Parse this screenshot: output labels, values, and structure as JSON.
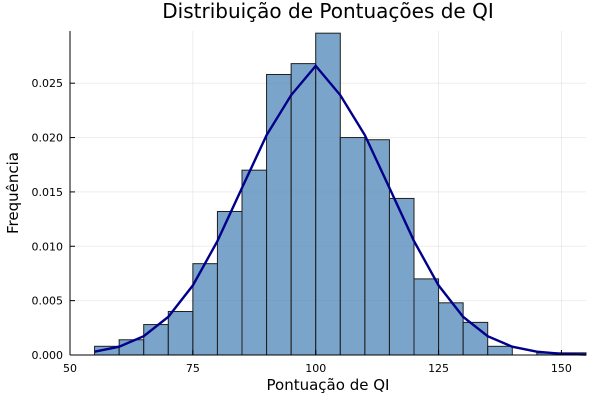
{
  "chart_data": {
    "type": "bar",
    "title": "Distribuição de Pontuações de QI",
    "xlabel": "Pontuação de QI",
    "ylabel": "Frequência",
    "x_ticks": [
      "50",
      "75",
      "100",
      "125",
      "150"
    ],
    "y_ticks": [
      "0.000",
      "0.005",
      "0.010",
      "0.015",
      "0.020",
      "0.025"
    ],
    "xlim": [
      50,
      155
    ],
    "ylim": [
      0,
      0.0298
    ],
    "grid": true,
    "bar_color": "#4f86b8",
    "curve_color": "#00008b",
    "bins": [
      {
        "start": 55,
        "end": 60,
        "value": 0.0008
      },
      {
        "start": 60,
        "end": 65,
        "value": 0.0014
      },
      {
        "start": 65,
        "end": 70,
        "value": 0.0028
      },
      {
        "start": 70,
        "end": 75,
        "value": 0.004
      },
      {
        "start": 75,
        "end": 80,
        "value": 0.0084
      },
      {
        "start": 80,
        "end": 85,
        "value": 0.0132
      },
      {
        "start": 85,
        "end": 90,
        "value": 0.017
      },
      {
        "start": 90,
        "end": 95,
        "value": 0.0258
      },
      {
        "start": 95,
        "end": 100,
        "value": 0.0268
      },
      {
        "start": 100,
        "end": 105,
        "value": 0.0296
      },
      {
        "start": 105,
        "end": 110,
        "value": 0.02
      },
      {
        "start": 110,
        "end": 115,
        "value": 0.0198
      },
      {
        "start": 115,
        "end": 120,
        "value": 0.0144
      },
      {
        "start": 120,
        "end": 125,
        "value": 0.007
      },
      {
        "start": 125,
        "end": 130,
        "value": 0.0048
      },
      {
        "start": 130,
        "end": 135,
        "value": 0.003
      },
      {
        "start": 135,
        "end": 140,
        "value": 0.0008
      },
      {
        "start": 140,
        "end": 145,
        "value": 0.0
      },
      {
        "start": 145,
        "end": 150,
        "value": 0.0002
      },
      {
        "start": 150,
        "end": 155,
        "value": 0.0002
      }
    ],
    "curve": {
      "x": [
        55,
        60,
        65,
        70,
        75,
        80,
        85,
        90,
        95,
        100,
        105,
        110,
        115,
        120,
        125,
        130,
        135,
        140,
        145,
        150,
        155
      ],
      "y": [
        0.0003,
        0.00076,
        0.00173,
        0.00351,
        0.0064,
        0.01048,
        0.01537,
        0.02022,
        0.0239,
        0.02659,
        0.0239,
        0.02022,
        0.01537,
        0.01048,
        0.0064,
        0.00351,
        0.00173,
        0.00076,
        0.0003,
        0.00011,
        4e-05
      ]
    }
  }
}
